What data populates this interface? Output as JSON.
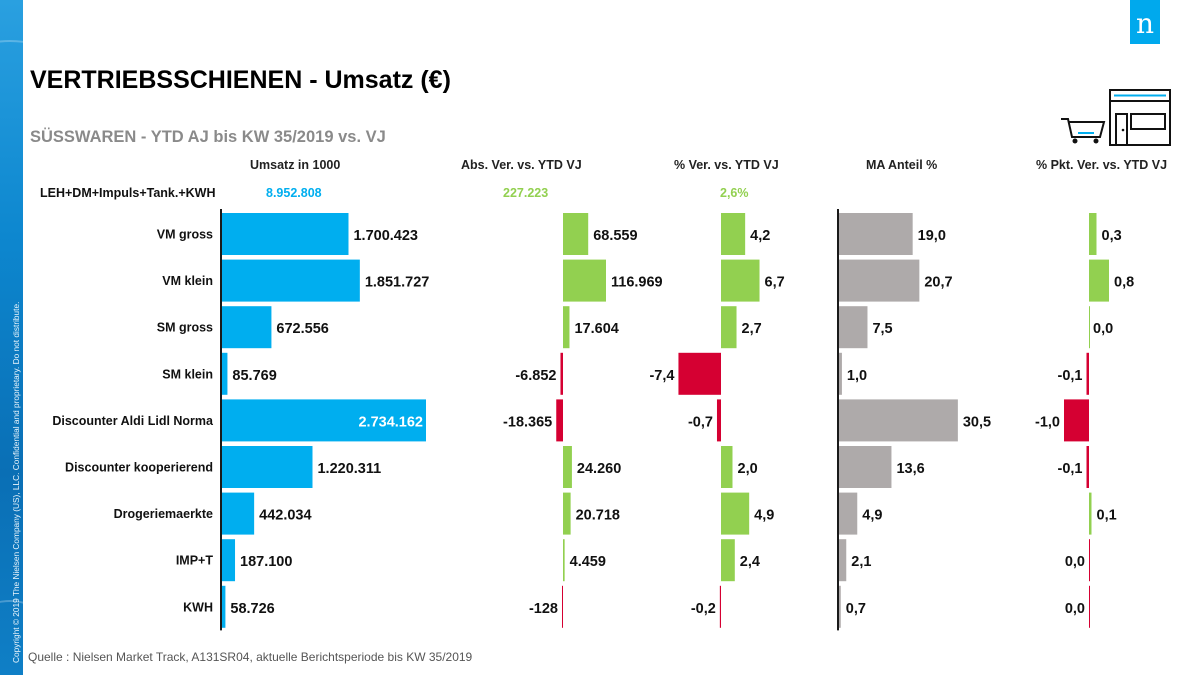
{
  "header": {
    "title": "VERTRIEBSSCHIENEN - Umsatz (€)",
    "subtitle": "SÜSSWAREN - YTD AJ bis KW 35/2019 vs. VJ",
    "logo_letter": "n",
    "copyright": "Copyright © 2019 The Nielsen Company (US), LLC. Confidential and proprietary. Do not distribute.",
    "source": "Quelle : Nielsen Market Track, A131SR04, aktuelle Berichtsperiode bis KW 35/2019"
  },
  "icons": {
    "logo": "nielsen-logo-icon",
    "store": "shopping-cart-store-icon"
  },
  "colors": {
    "umsatz": "#00aeef",
    "positive": "#92d050",
    "negative": "#d50032",
    "share": "#aeaaaa",
    "axis": "#1a1a1a",
    "total_umsatz": "#00aeef",
    "total_change": "#92d050"
  },
  "totals": {
    "label": "LEH+DM+Impuls+Tank.+KWH",
    "umsatz": "8.952.808",
    "abs": "227.223",
    "pct": "2,6%"
  },
  "chart_data": {
    "type": "bar",
    "orientation": "horizontal",
    "title": "VERTRIEBSSCHIENEN - Umsatz (€)",
    "subtitle": "SÜSSWAREN - YTD AJ bis KW 35/2019 vs. VJ",
    "categories": [
      "VM gross",
      "VM klein",
      "SM gross",
      "SM klein",
      "Discounter Aldi  Lidl  Norma",
      "Discounter kooperierend",
      "Drogeriemaerkte",
      "IMP+T",
      "KWH"
    ],
    "panels": [
      {
        "key": "umsatz",
        "header": "Umsatz in 1000",
        "values": [
          1700423,
          1851727,
          672556,
          85769,
          2734162,
          1220311,
          442034,
          187100,
          58726
        ],
        "labels": [
          "1.700.423",
          "1.851.727",
          "672.556",
          "85.769",
          "2.734.162",
          "1.220.311",
          "442.034",
          "187.100",
          "58.726"
        ],
        "xlim": [
          0,
          2734162
        ]
      },
      {
        "key": "abs",
        "header": "Abs. Ver. vs. YTD VJ",
        "values": [
          68559,
          116969,
          17604,
          -6852,
          -18365,
          24260,
          20718,
          4459,
          -128
        ],
        "labels": [
          "68.559",
          "116.969",
          "17.604",
          "-6.852",
          "-18.365",
          "24.260",
          "20.718",
          "4.459",
          "-128"
        ]
      },
      {
        "key": "pct",
        "header": "% Ver. vs. YTD VJ",
        "values": [
          4.2,
          6.7,
          2.7,
          -7.4,
          -0.7,
          2.0,
          4.9,
          2.4,
          -0.2
        ],
        "labels": [
          "4,2",
          "6,7",
          "2,7",
          "-7,4",
          "-0,7",
          "2,0",
          "4,9",
          "2,4",
          "-0,2"
        ]
      },
      {
        "key": "share",
        "header": "MA Anteil %",
        "values": [
          19.0,
          20.7,
          7.5,
          1.0,
          30.5,
          13.6,
          4.9,
          2.1,
          0.7
        ],
        "labels": [
          "19,0",
          "20,7",
          "7,5",
          "1,0",
          "30,5",
          "13,6",
          "4,9",
          "2,1",
          "0,7"
        ]
      },
      {
        "key": "pkt",
        "header": "% Pkt. Ver. vs. YTD VJ",
        "values": [
          0.3,
          0.8,
          0.0,
          -0.1,
          -1.0,
          -0.1,
          0.1,
          0.0,
          0.0
        ],
        "labels": [
          "0,3",
          "0,8",
          "0,0",
          "-0,1",
          "-1,0",
          "-0,1",
          "0,1",
          "0,0",
          "0,0"
        ]
      }
    ],
    "grid": false,
    "legend": "none"
  }
}
